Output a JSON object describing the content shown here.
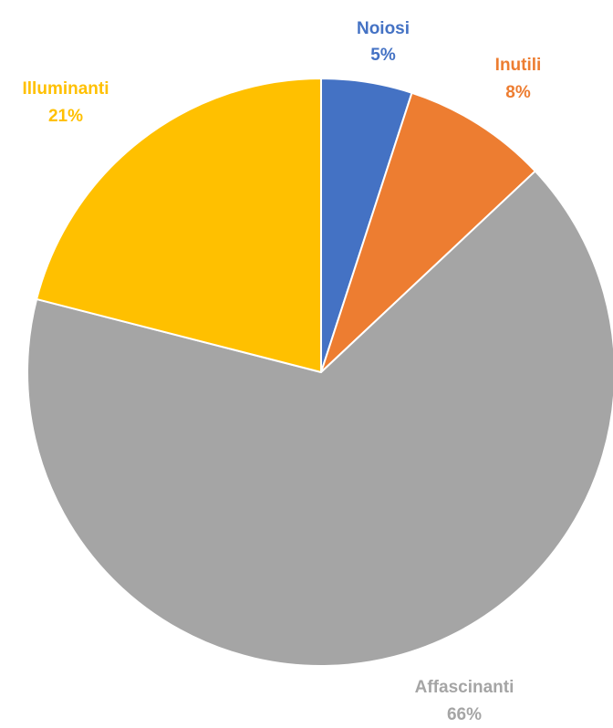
{
  "chart_data": {
    "type": "pie",
    "title": "",
    "slices": [
      {
        "label": "Noiosi",
        "value": 5,
        "display": "5%",
        "color": "#4472C4"
      },
      {
        "label": "Inutili",
        "value": 8,
        "display": "8%",
        "color": "#ED7D31"
      },
      {
        "label": "Affascinanti",
        "value": 66,
        "display": "66%",
        "color": "#A5A5A5"
      },
      {
        "label": "Illuminanti",
        "value": 21,
        "display": "21%",
        "color": "#FFC000"
      }
    ],
    "start_angle": "12 o'clock",
    "direction": "clockwise",
    "legend": "none",
    "data_labels": "outside"
  }
}
